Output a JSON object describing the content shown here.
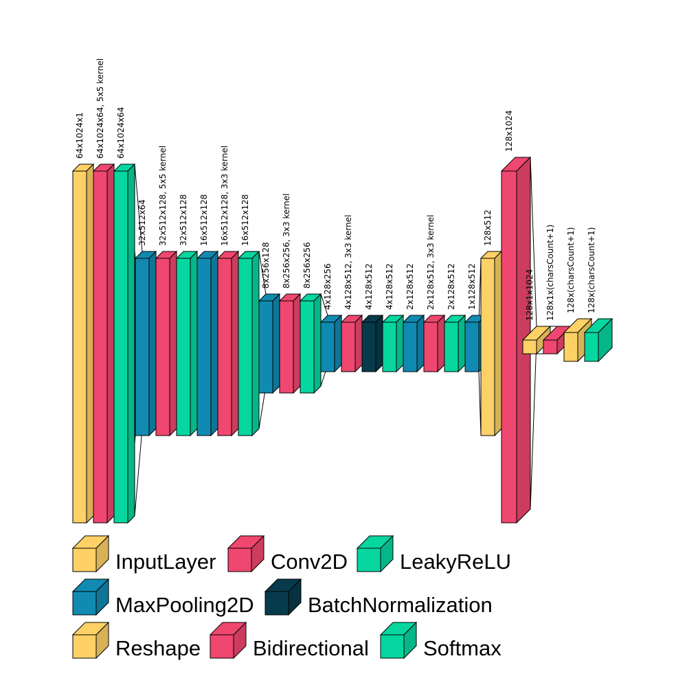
{
  "colors": {
    "InputLayer": "#fdd166",
    "Conv2D": "#ef476f",
    "LeakyReLU": "#06d6a0",
    "MaxPooling2D": "#118ab2",
    "BatchNormalization": "#073b4c",
    "Reshape": "#fdd166",
    "Bidirectional": "#ef476f",
    "Softmax": "#06d6a0"
  },
  "layers": [
    {
      "type": "InputLayer",
      "label": "64x1024x1"
    },
    {
      "type": "Conv2D",
      "label": "64x1024x64, 5x5 kernel"
    },
    {
      "type": "LeakyReLU",
      "label": "64x1024x64"
    },
    {
      "type": "MaxPooling2D",
      "label": "32x512x64"
    },
    {
      "type": "Conv2D",
      "label": "32x512x128, 5x5 kernel"
    },
    {
      "type": "LeakyReLU",
      "label": "32x512x128"
    },
    {
      "type": "MaxPooling2D",
      "label": "16x512x128"
    },
    {
      "type": "Conv2D",
      "label": "16x512x128, 3x3 kernel"
    },
    {
      "type": "LeakyReLU",
      "label": "16x512x128"
    },
    {
      "type": "MaxPooling2D",
      "label": "8x256x128"
    },
    {
      "type": "Conv2D",
      "label": "8x256x256, 3x3 kernel"
    },
    {
      "type": "LeakyReLU",
      "label": "8x256x256"
    },
    {
      "type": "MaxPooling2D",
      "label": "4x128x256"
    },
    {
      "type": "Conv2D",
      "label": "4x128x512, 3x3 kernel"
    },
    {
      "type": "BatchNormalization",
      "label": "4x128x512"
    },
    {
      "type": "LeakyReLU",
      "label": "4x128x512"
    },
    {
      "type": "MaxPooling2D",
      "label": "2x128x512"
    },
    {
      "type": "Conv2D",
      "label": "2x128x512, 3x3 kernel"
    },
    {
      "type": "LeakyReLU",
      "label": "2x128x512"
    },
    {
      "type": "MaxPooling2D",
      "label": "1x128x512"
    },
    {
      "type": "Reshape",
      "label": "128x512"
    },
    {
      "type": "Bidirectional",
      "label": "128x1024"
    },
    {
      "type": "Reshape",
      "label": "128x1x1024"
    },
    {
      "type": "Conv2D",
      "label": "128x1x(charsCount+1)"
    },
    {
      "type": "Reshape",
      "label": "128x(charsCount+1)"
    },
    {
      "type": "Softmax",
      "label": "128x(charsCount+1)"
    }
  ],
  "legend": [
    {
      "label": "InputLayer",
      "type": "InputLayer"
    },
    {
      "label": "Conv2D",
      "type": "Conv2D"
    },
    {
      "label": "LeakyReLU",
      "type": "LeakyReLU"
    },
    {
      "label": "MaxPooling2D",
      "type": "MaxPooling2D"
    },
    {
      "label": "BatchNormalization",
      "type": "BatchNormalization"
    },
    {
      "label": "Reshape",
      "type": "Reshape"
    },
    {
      "label": "Bidirectional",
      "type": "Bidirectional"
    },
    {
      "label": "Softmax",
      "type": "Softmax"
    }
  ]
}
